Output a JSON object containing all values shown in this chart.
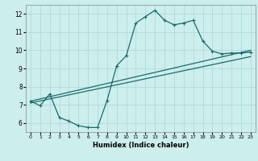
{
  "title": "",
  "xlabel": "Humidex (Indice chaleur)",
  "bg_color": "#cceeed",
  "grid_color": "#aad8d6",
  "line_color": "#1a6b6b",
  "xlim": [
    -0.5,
    23.5
  ],
  "ylim": [
    5.5,
    12.5
  ],
  "xticks": [
    0,
    1,
    2,
    3,
    4,
    5,
    6,
    7,
    8,
    9,
    10,
    11,
    12,
    13,
    14,
    15,
    16,
    17,
    18,
    19,
    20,
    21,
    22,
    23
  ],
  "yticks": [
    6,
    7,
    8,
    9,
    10,
    11,
    12
  ],
  "series1_x": [
    0,
    1,
    2,
    3,
    4,
    5,
    6,
    7,
    8,
    9,
    10,
    11,
    12,
    13,
    14,
    15,
    16,
    17,
    18,
    19,
    20,
    21,
    22,
    23
  ],
  "series1_y": [
    7.2,
    6.95,
    7.6,
    6.3,
    6.1,
    5.85,
    5.75,
    5.75,
    7.25,
    9.15,
    9.7,
    11.5,
    11.85,
    12.2,
    11.65,
    11.4,
    11.5,
    11.65,
    10.5,
    9.95,
    9.8,
    9.85,
    9.85,
    9.9
  ],
  "series2_x": [
    0,
    23
  ],
  "series2_y": [
    7.2,
    10.0
  ],
  "series3_x": [
    0,
    23
  ],
  "series3_y": [
    7.1,
    9.65
  ]
}
